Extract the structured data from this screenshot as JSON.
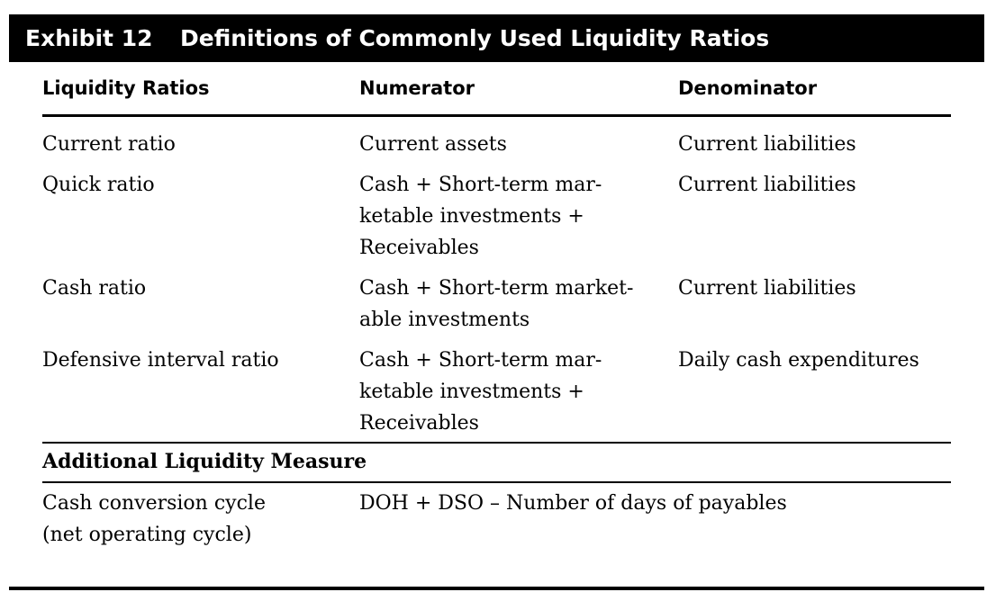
{
  "exhibit": {
    "number": "Exhibit 12",
    "title": "Definitions of Commonly Used Liquidity Ratios"
  },
  "columns": {
    "ratio": "Liquidity Ratios",
    "numerator": "Numerator",
    "denominator": "Denominator"
  },
  "rows": [
    {
      "ratio": [
        "Current ratio"
      ],
      "numerator": [
        "Current assets"
      ],
      "denominator": [
        "Current liabilities"
      ]
    },
    {
      "ratio": [
        "Quick ratio"
      ],
      "numerator": [
        "Cash + Short-term mar-",
        "ketable investments +",
        "Receivables"
      ],
      "denominator": [
        "Current liabilities"
      ]
    },
    {
      "ratio": [
        "Cash ratio"
      ],
      "numerator": [
        "Cash + Short-term market-",
        "able investments"
      ],
      "denominator": [
        "Current liabilities"
      ]
    },
    {
      "ratio": [
        "Defensive interval ratio"
      ],
      "numerator": [
        "Cash + Short-term mar-",
        "ketable investments +",
        "Receivables"
      ],
      "denominator": [
        "Daily cash expenditures"
      ]
    }
  ],
  "additional": {
    "heading": "Additional Liquidity Measure",
    "measure": [
      "Cash conversion cycle",
      "(net operating cycle)"
    ],
    "formula": "DOH + DSO – Number of days of payables"
  }
}
